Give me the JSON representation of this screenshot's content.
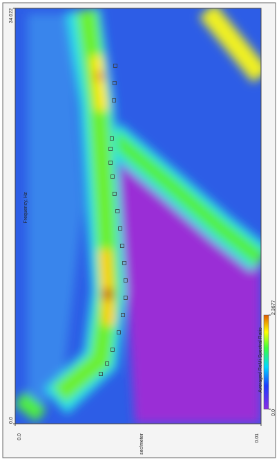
{
  "chart_data": {
    "type": "scatter",
    "x_label": "Frequency, Hz",
    "y_label": "sec/meter",
    "colorbar_label": "Averaged ReMi Spectral Ratio",
    "xlim": [
      0,
      34.022
    ],
    "xticks": [
      {
        "value": 0,
        "label": "0.0"
      },
      34.022
    ],
    "ylim": [
      0,
      0.01
    ],
    "yticks": [
      {
        "value": 0,
        "label": "0.0"
      },
      0.01
    ],
    "clim": [
      0,
      2.3677
    ],
    "cticks": [
      {
        "value": 0,
        "label": "0.0"
      },
      2.3677
    ],
    "series": [
      {
        "color": "#3a3a3a",
        "x": [
          29.32,
          27.9,
          26.48,
          23.36,
          22.51,
          21.38,
          20.24,
          18.83,
          17.41,
          15.99,
          14.57,
          13.16,
          11.74,
          10.32,
          8.9,
          7.48,
          6.07,
          4.93,
          4.08
        ],
        "values": [
          0.00407,
          0.00404,
          0.00402,
          0.00393,
          0.00388,
          0.00388,
          0.00396,
          0.00404,
          0.00416,
          0.00427,
          0.00435,
          0.00444,
          0.00449,
          0.00449,
          0.00438,
          0.00421,
          0.00396,
          0.00374,
          0.00348
        ]
      }
    ]
  }
}
